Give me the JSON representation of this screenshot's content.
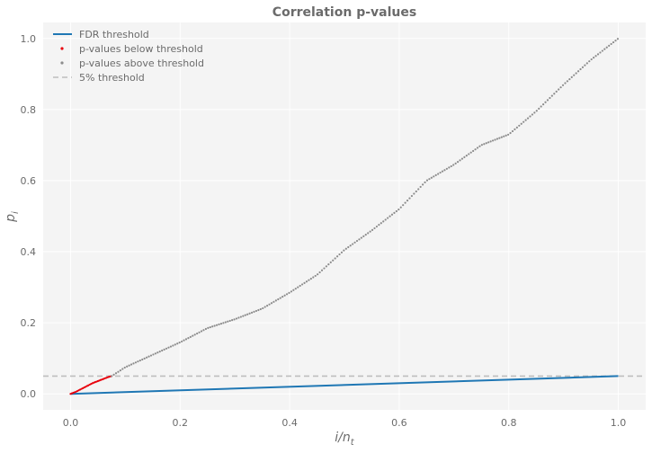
{
  "chart_data": {
    "type": "scatter",
    "title": "Correlation p-values",
    "xlabel_main": "i/n",
    "xlabel_sub": "t",
    "ylabel_main": "p",
    "ylabel_sub": "i",
    "xlim": [
      -0.05,
      1.05
    ],
    "ylim": [
      -0.045,
      1.045
    ],
    "x_ticks": [
      0.0,
      0.2,
      0.4,
      0.6,
      0.8,
      1.0
    ],
    "x_tick_labels": [
      "0.0",
      "0.2",
      "0.4",
      "0.6",
      "0.8",
      "1.0"
    ],
    "y_ticks": [
      0.0,
      0.2,
      0.4,
      0.6,
      0.8,
      1.0
    ],
    "y_tick_labels": [
      "0.0",
      "0.2",
      "0.4",
      "0.6",
      "0.8",
      "1.0"
    ],
    "grid": true,
    "legend_position": "top-left",
    "series": [
      {
        "name": "FDR threshold",
        "kind": "line",
        "color": "#1f77b4",
        "x": [
          0.0,
          1.0
        ],
        "y": [
          0.0,
          0.05
        ]
      },
      {
        "name": "p-values below threshold",
        "kind": "points",
        "color": "#e8000b",
        "curve_x": [
          0.0,
          0.005,
          0.01,
          0.015,
          0.02,
          0.025,
          0.03,
          0.035,
          0.04,
          0.045,
          0.05,
          0.055,
          0.06,
          0.065,
          0.07,
          0.075
        ],
        "curve_y": [
          0.0,
          0.003,
          0.006,
          0.01,
          0.014,
          0.018,
          0.022,
          0.026,
          0.03,
          0.033,
          0.036,
          0.039,
          0.042,
          0.045,
          0.048,
          0.05
        ]
      },
      {
        "name": "p-values above threshold",
        "kind": "points",
        "color": "#8c8c8c",
        "curve_x": [
          0.075,
          0.1,
          0.15,
          0.2,
          0.25,
          0.3,
          0.35,
          0.4,
          0.45,
          0.5,
          0.55,
          0.6,
          0.65,
          0.7,
          0.75,
          0.8,
          0.85,
          0.9,
          0.95,
          1.0
        ],
        "curve_y": [
          0.05,
          0.075,
          0.11,
          0.145,
          0.185,
          0.21,
          0.24,
          0.285,
          0.335,
          0.405,
          0.46,
          0.52,
          0.6,
          0.645,
          0.7,
          0.73,
          0.795,
          0.87,
          0.94,
          1.0
        ]
      },
      {
        "name": "5% threshold",
        "kind": "hline",
        "color": "#bdbdbd",
        "y": 0.05
      }
    ]
  }
}
